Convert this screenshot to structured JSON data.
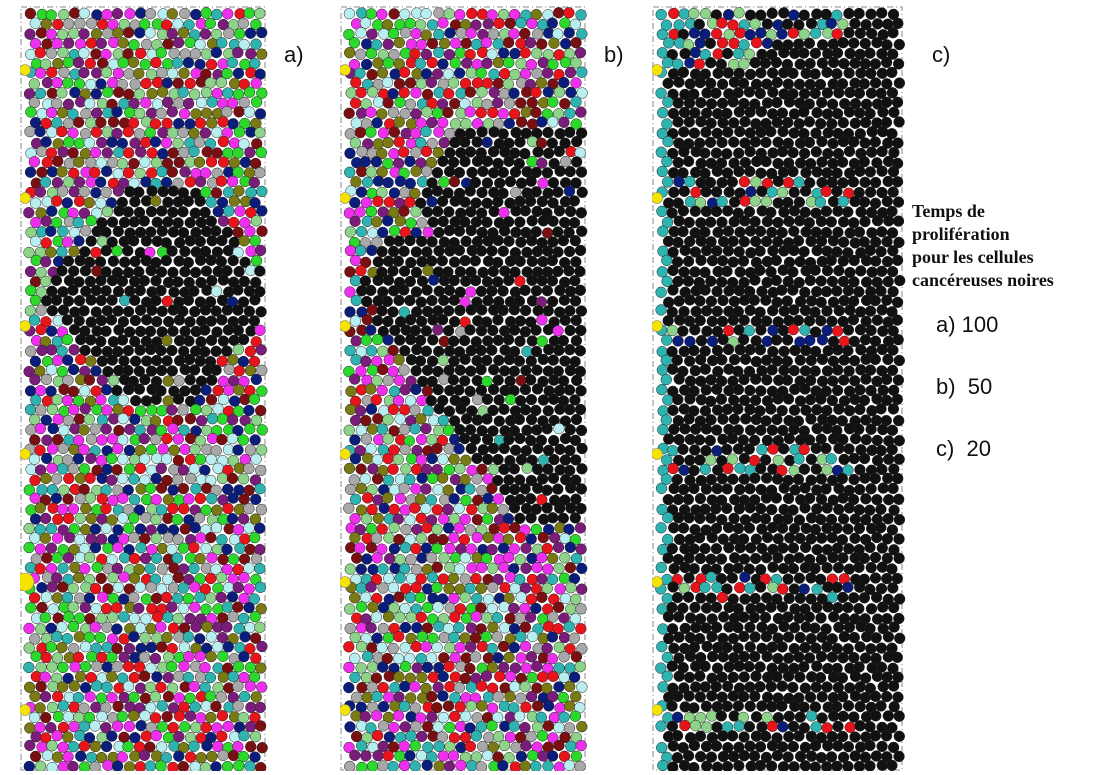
{
  "panels": [
    {
      "id": "a",
      "label": "a)",
      "black_fraction": "low",
      "scheme": "mixed"
    },
    {
      "id": "b",
      "label": "b)",
      "black_fraction": "medium",
      "scheme": "mixed"
    },
    {
      "id": "c",
      "label": "c)",
      "black_fraction": "high",
      "scheme": "black"
    }
  ],
  "legend": {
    "title_lines": [
      "Temps de",
      "prolifération",
      "pour les cellules",
      "cancéreuses noires"
    ],
    "items": [
      {
        "label": "a) 100"
      },
      {
        "label": "b)  50"
      },
      {
        "label": "c)  20"
      }
    ]
  },
  "colors": {
    "black_cell": "#111111",
    "cell_palette": [
      "#e8141b",
      "#0b1d7a",
      "#2eb3b0",
      "#8ed38a",
      "#ee30ee",
      "#a8a8a8",
      "#7a0f12",
      "#2bd82b",
      "#b8eef0",
      "#7a7a14",
      "#7a1d7a"
    ],
    "boundary_cell": "#f5e400"
  }
}
